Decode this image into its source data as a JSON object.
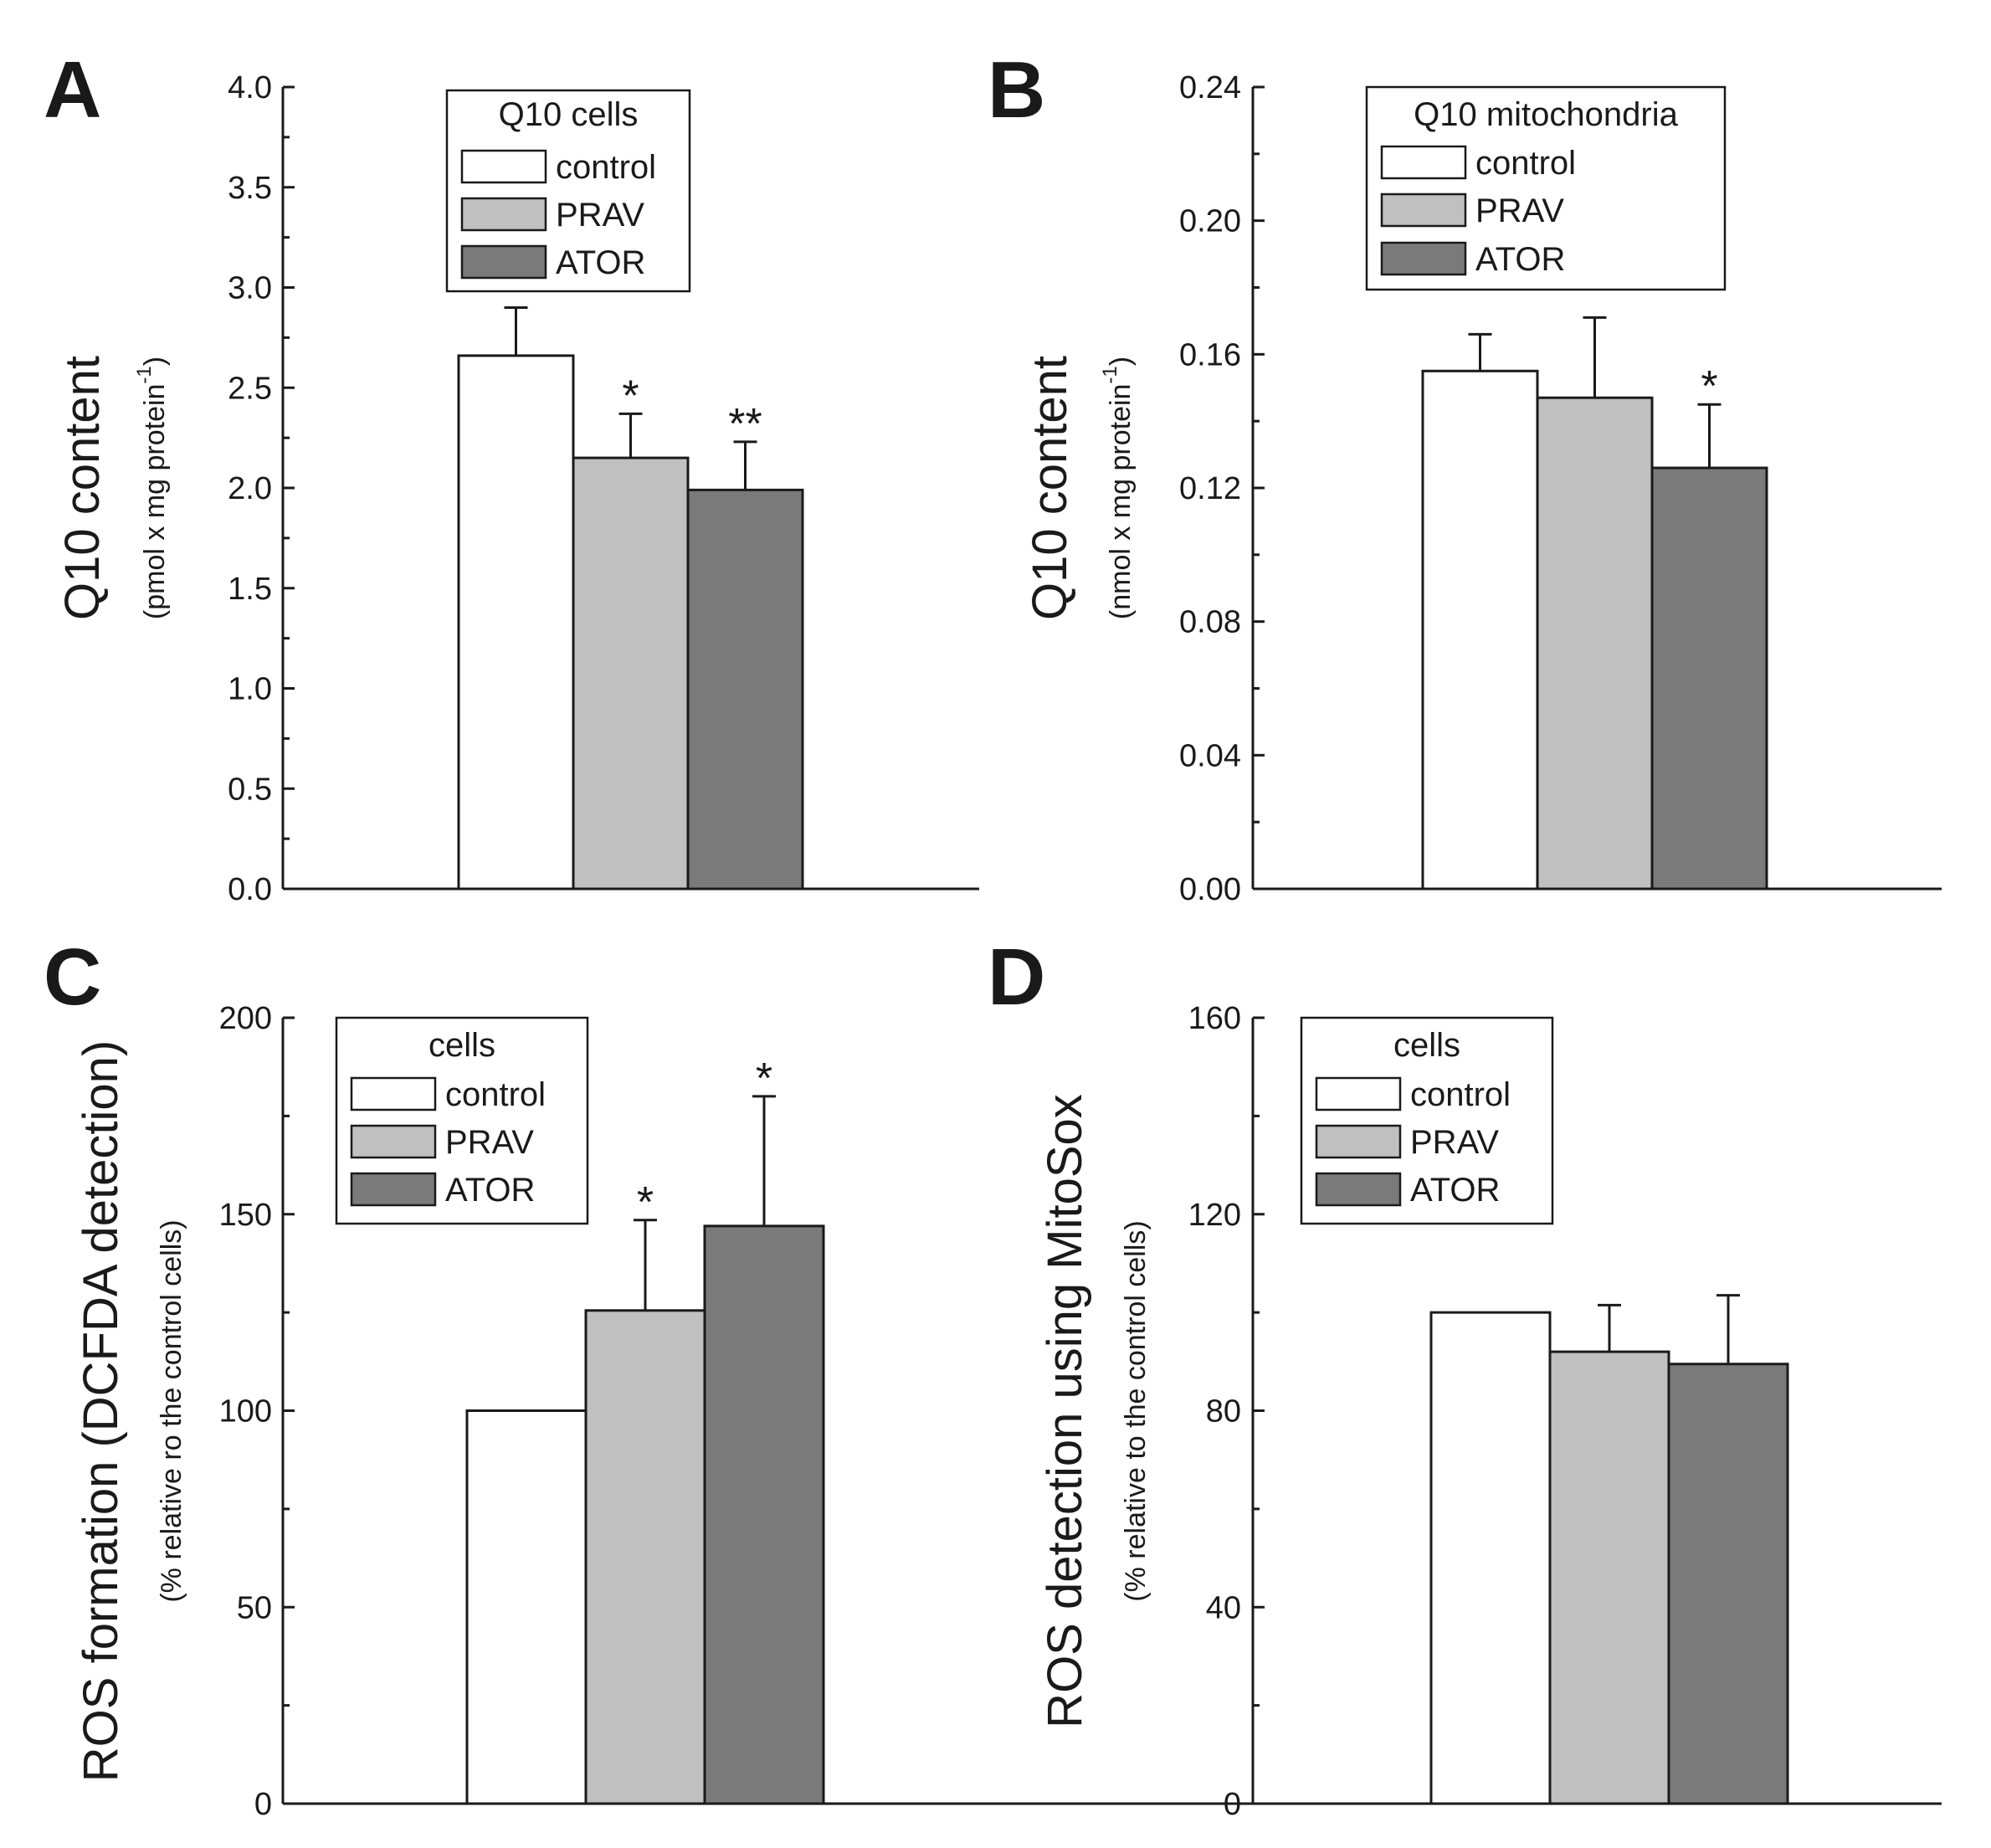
{
  "figure": {
    "colors": {
      "control": "#ffffff",
      "PRAV": "#c0c0c0",
      "ATOR": "#7a7a7a",
      "axis": "#1a1a1a"
    }
  },
  "chart_data": [
    {
      "panel": "A",
      "type": "bar",
      "title": "",
      "ylabel": "Q10 content",
      "ylabel_sub": "(pmol x mg protein",
      "ylabel_sup": "-1",
      "ylabel_close": ")",
      "xlabel": "",
      "ylim": [
        0,
        4.0
      ],
      "yticks": [
        0.0,
        0.5,
        1.0,
        1.5,
        2.0,
        2.5,
        3.0,
        3.5,
        4.0
      ],
      "ytick_labels": [
        "0.0",
        "0.5",
        "1.0",
        "1.5",
        "2.0",
        "2.5",
        "3.0",
        "3.5",
        "4.0"
      ],
      "legend": {
        "title": "Q10 cells",
        "entries": [
          "control",
          "PRAV",
          "ATOR"
        ],
        "position": "top-center"
      },
      "categories": [
        "control",
        "PRAV",
        "ATOR"
      ],
      "values": [
        2.66,
        2.15,
        1.99
      ],
      "errors": [
        0.24,
        0.22,
        0.24
      ],
      "significance": [
        "",
        "*",
        "**"
      ]
    },
    {
      "panel": "B",
      "type": "bar",
      "title": "",
      "ylabel": "Q10 content",
      "ylabel_sub": "(nmol x mg protein",
      "ylabel_sup": "-1",
      "ylabel_close": ")",
      "xlabel": "",
      "ylim": [
        0,
        0.24
      ],
      "yticks": [
        0.0,
        0.04,
        0.08,
        0.12,
        0.16,
        0.2,
        0.24
      ],
      "ytick_labels": [
        "0.00",
        "0.04",
        "0.08",
        "0.12",
        "0.16",
        "0.20",
        "0.24"
      ],
      "legend": {
        "title": "Q10 mitochondria",
        "entries": [
          "control",
          "PRAV",
          "ATOR"
        ],
        "position": "top-center"
      },
      "categories": [
        "control",
        "PRAV",
        "ATOR"
      ],
      "values": [
        0.155,
        0.147,
        0.126
      ],
      "errors": [
        0.011,
        0.024,
        0.019
      ],
      "significance": [
        "",
        "",
        "*"
      ]
    },
    {
      "panel": "C",
      "type": "bar",
      "title": "",
      "ylabel": "ROS formation (DCFDA detection)",
      "ylabel_sub": "(% relative ro the control cells)",
      "ylabel_sup": "",
      "ylabel_close": "",
      "xlabel": "",
      "ylim": [
        0,
        200
      ],
      "yticks": [
        0,
        50,
        100,
        150,
        200
      ],
      "ytick_labels": [
        "0",
        "50",
        "100",
        "150",
        "200"
      ],
      "legend": {
        "title": "cells",
        "entries": [
          "control",
          "PRAV",
          "ATOR"
        ],
        "position": "top-left"
      },
      "categories": [
        "control",
        "PRAV",
        "ATOR"
      ],
      "values": [
        100,
        125.5,
        147
      ],
      "errors": [
        0,
        23,
        33
      ],
      "significance": [
        "",
        "*",
        "*"
      ]
    },
    {
      "panel": "D",
      "type": "bar",
      "title": "",
      "ylabel": "ROS detection using MitoSox",
      "ylabel_sub": "(% relative to the control cells)",
      "ylabel_sup": "",
      "ylabel_close": "",
      "xlabel": "",
      "ylim": [
        0,
        160
      ],
      "yticks": [
        0,
        40,
        80,
        120,
        160
      ],
      "ytick_labels": [
        "0",
        "40",
        "80",
        "120",
        "160"
      ],
      "legend": {
        "title": "cells",
        "entries": [
          "control",
          "PRAV",
          "ATOR"
        ],
        "position": "top-left"
      },
      "categories": [
        "control",
        "PRAV",
        "ATOR"
      ],
      "values": [
        100,
        92,
        89.5
      ],
      "errors": [
        0,
        9.5,
        14
      ],
      "significance": [
        "",
        "",
        ""
      ]
    }
  ]
}
